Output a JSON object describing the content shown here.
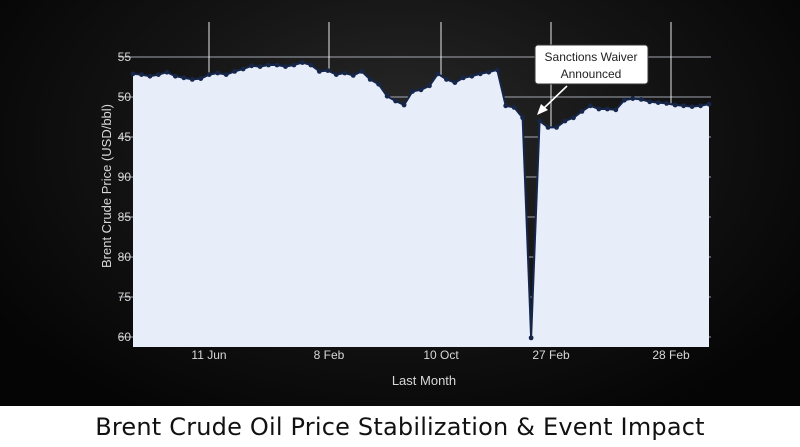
{
  "chart_data": {
    "type": "line",
    "title": "Brent Crude Oil Price Stabilization & Event Impact",
    "xlabel": "Last Month",
    "ylabel": "Brent Crude Price (USD/bbl)",
    "y_tick_labels": [
      "55",
      "50",
      "45",
      "90",
      "85",
      "80",
      "75",
      "60"
    ],
    "x_tick_labels": [
      "11 Jun",
      "8 Feb",
      "10 Oct",
      "27 Feb",
      "28 Feb"
    ],
    "grid": true,
    "series": [
      {
        "values": [
          52.9,
          52.8,
          52.6,
          52.8,
          53.1,
          52.6,
          52.4,
          52.2,
          52.3,
          52.8,
          53.0,
          52.8,
          53.2,
          53.5,
          53.9,
          53.8,
          54.0,
          54.0,
          53.8,
          54.0,
          54.3,
          54.0,
          53.2,
          53.3,
          52.8,
          53.0,
          52.7,
          53.2,
          52.2,
          51.6,
          50.1,
          49.5,
          49.0,
          50.7,
          50.9,
          51.4,
          52.9,
          52.2,
          51.8,
          52.4,
          52.6,
          52.9,
          53.1,
          53.4,
          48.9,
          48.7,
          47.4,
          12.6,
          47.0,
          46.2,
          46.2,
          47.0,
          47.4,
          48.2,
          48.9,
          48.5,
          48.5,
          48.4,
          49.6,
          49.8,
          49.7,
          49.4,
          49.3,
          49.2,
          49.0,
          48.9,
          48.8,
          48.9,
          49.1
        ]
      }
    ],
    "annotation": {
      "text_line1": "Sanctions Waiver",
      "text_line2": "Announced"
    },
    "colors": {
      "line": "#16264a",
      "fill": "#e8eef9",
      "marker": "#16264a",
      "grid": "#ffffff"
    }
  }
}
